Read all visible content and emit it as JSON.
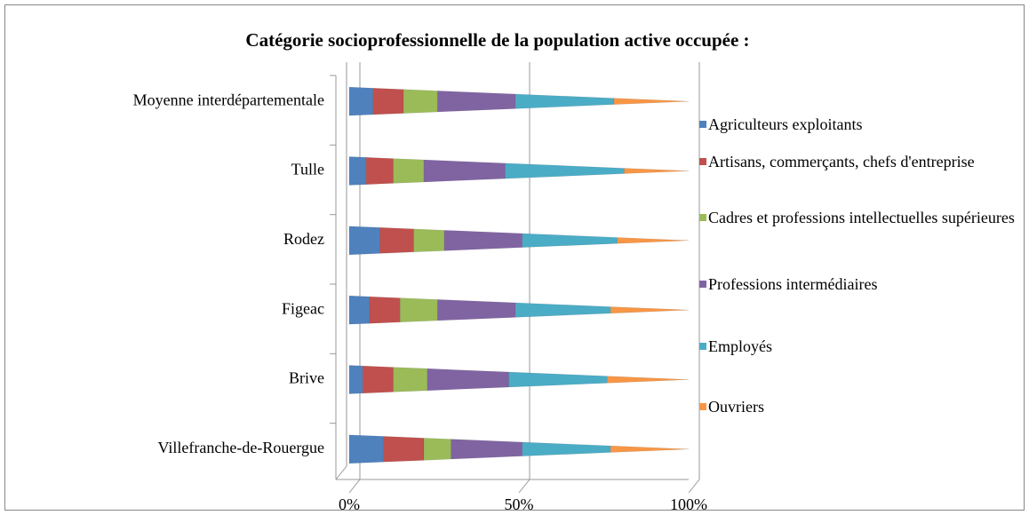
{
  "chart_data": {
    "type": "bar3d_cone_stacked_percent",
    "title": "Catégorie socioprofessionnelle de la population active occupée :",
    "categories": [
      "Moyenne interdépartementale",
      "Tulle",
      "Rodez",
      "Figeac",
      "Brive",
      "Villefranche-de-Rouergue"
    ],
    "series": [
      {
        "name": "Agriculteurs exploitants",
        "color": "#4f81bd",
        "values": [
          7,
          5,
          9,
          6,
          4,
          10
        ]
      },
      {
        "name": "Artisans, commerçants, chefs d'entreprise",
        "color": "#c0504d",
        "values": [
          9,
          8,
          10,
          9,
          9,
          12
        ]
      },
      {
        "name": "Cadres et professions intellectuelles supérieures",
        "color": "#9bbb59",
        "values": [
          10,
          9,
          9,
          11,
          10,
          8
        ]
      },
      {
        "name": "Professions intermédiaires",
        "color": "#8064a2",
        "values": [
          23,
          24,
          23,
          23,
          24,
          21
        ]
      },
      {
        "name": "Employés",
        "color": "#4bacc6",
        "values": [
          29,
          35,
          28,
          28,
          29,
          26
        ]
      },
      {
        "name": "Ouvriers",
        "color": "#f79646",
        "values": [
          22,
          19,
          21,
          23,
          24,
          23
        ]
      }
    ],
    "xlim": [
      0,
      100
    ],
    "xticks": [
      {
        "value": 0,
        "label": "0%"
      },
      {
        "value": 50,
        "label": "50%"
      },
      {
        "value": 100,
        "label": "100%"
      }
    ],
    "grid": true,
    "legend": "right"
  }
}
